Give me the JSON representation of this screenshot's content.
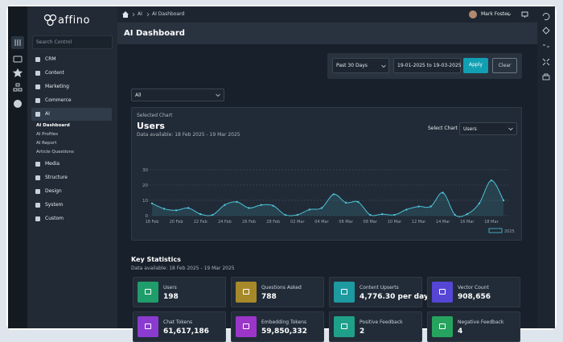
{
  "logo": "affino",
  "search_placeholder": "Search Control",
  "nav": {
    "items": [
      {
        "label": "CRM"
      },
      {
        "label": "Content"
      },
      {
        "label": "Marketing"
      },
      {
        "label": "Commerce"
      },
      {
        "label": "AI",
        "children": [
          "AI Dashboard",
          "AI Profiles",
          "AI Report",
          "Article Questions"
        ]
      },
      {
        "label": "Media"
      },
      {
        "label": "Structure"
      },
      {
        "label": "Design"
      },
      {
        "label": "System"
      },
      {
        "label": "Custom"
      }
    ]
  },
  "breadcrumb": [
    "AI",
    "AI Dashboard"
  ],
  "user": "Mark Foster",
  "page_title": "AI Dashboard",
  "filters": {
    "period": "Past 30 Days",
    "date_range": "19-01-2025 to 19-03-2025",
    "apply": "Apply",
    "clear": "Clear",
    "scope": "All"
  },
  "chart_panel": {
    "caption": "Selected Chart",
    "select_label": "Select Chart",
    "select_value": "Users"
  },
  "chart_data": {
    "type": "line",
    "title": "Users",
    "subtitle": "Data available: 18 Feb 2025 - 19 Mar 2025",
    "categories": [
      "18 Feb",
      null,
      "20 Feb",
      null,
      "22 Feb",
      null,
      "24 Feb",
      null,
      "26 Feb",
      null,
      "28 Feb",
      null,
      "02 Mar",
      null,
      "04 Mar",
      null,
      "06 Mar",
      null,
      "08 Mar",
      null,
      "10 Mar",
      null,
      "12 Mar",
      null,
      "14 Mar",
      null,
      "16 Mar",
      null,
      "18 Mar",
      null
    ],
    "series": [
      {
        "name": "2025",
        "color": "#4cc3d8",
        "values": [
          8,
          4.5,
          3.5,
          5,
          1,
          0.5,
          7,
          9,
          5,
          7,
          6.5,
          0.5,
          0.5,
          4,
          5,
          14,
          8.5,
          9,
          0.5,
          1,
          0.5,
          4,
          6,
          6,
          15,
          0.5,
          1,
          8,
          23,
          10
        ]
      }
    ],
    "ylim": [
      0,
      30
    ],
    "yticks": [
      0,
      10,
      20,
      30
    ],
    "grid": true
  },
  "stats": {
    "title": "Key Statistics",
    "subtitle": "Data available: 18 Feb 2025 - 19 Mar 2025",
    "cards": [
      {
        "label": "Users",
        "value": "198",
        "icon_color": "#1f9d6a"
      },
      {
        "label": "Questions Asked",
        "value": "788",
        "icon_color": "#a8892a"
      },
      {
        "label": "Content Upserts",
        "value": "4,776.30 per day",
        "icon_color": "#1c9aa0"
      },
      {
        "label": "Vector Count",
        "value": "908,656",
        "icon_color": "#5546d6"
      },
      {
        "label": "Chat Tokens",
        "value": "61,617,186",
        "icon_color": "#8a3bd0"
      },
      {
        "label": "Embedding Tokens",
        "value": "59,850,332",
        "icon_color": "#9b36c9"
      },
      {
        "label": "Positive Feedback",
        "value": "2",
        "icon_color": "#1fa088"
      },
      {
        "label": "Negative Feedback",
        "value": "4",
        "icon_color": "#26a35e"
      }
    ]
  }
}
